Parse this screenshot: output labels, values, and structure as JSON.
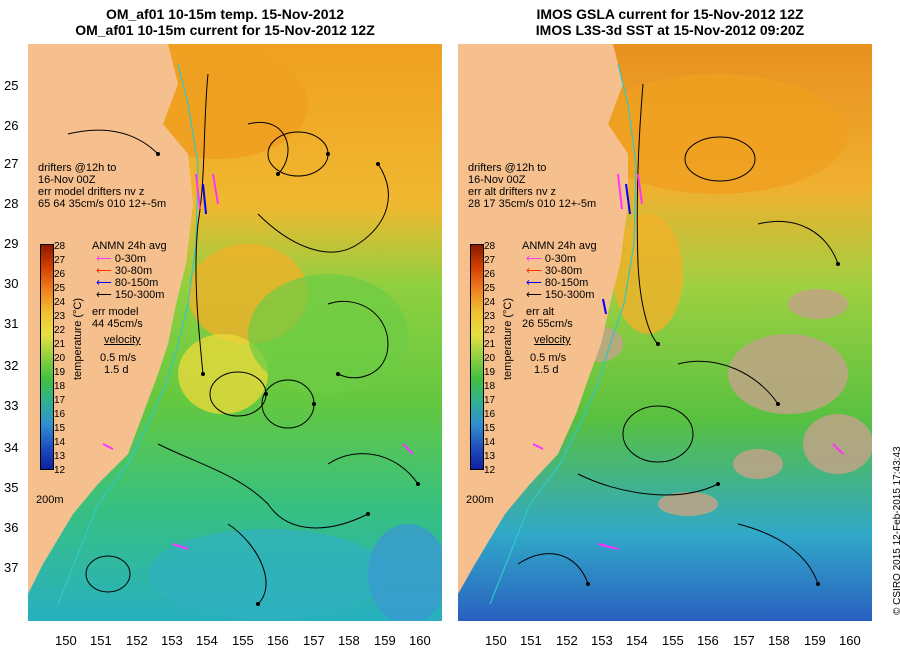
{
  "left_panel": {
    "title_line1": "OM_af01 10-15m temp. 15-Nov-2012",
    "title_line2": "OM_af01 10-15m current for 15-Nov-2012 12Z",
    "drifter_line1": "drifters @12h to",
    "drifter_line2": "16-Nov 00Z",
    "drifter_line3": "err model drifters nv z",
    "drifter_line4": "65   64    35cm/s 010 12+-5m",
    "err_line1": "err model",
    "err_line2": "44 45cm/s"
  },
  "right_panel": {
    "title_line1": "IMOS GSLA current for 15-Nov-2012 12Z",
    "title_line2": "IMOS L3S-3d SST at 15-Nov-2012 09:20Z",
    "drifter_line1": "drifters @12h to",
    "drifter_line2": "16-Nov 00Z",
    "drifter_line3": "err alt drifters nv z",
    "drifter_line4": "28 17 35cm/s 010 12+-5m",
    "err_line1": "err alt",
    "err_line2": "26 55cm/s"
  },
  "legend": {
    "anmn_title": "ANMN 24h avg",
    "depths": [
      {
        "label": "0-30m",
        "color": "#ff33ff"
      },
      {
        "label": "30-80m",
        "color": "#ff3300"
      },
      {
        "label": "80-150m",
        "color": "#0000ff"
      },
      {
        "label": "150-300m",
        "color": "#000000"
      }
    ],
    "velocity": "velocity",
    "scale_speed": "0.5 m/s",
    "scale_time": "1.5 d",
    "depth_contour": "200m",
    "colorbar_label": "temperature (°C)"
  },
  "colorbar_ticks": [
    "28",
    "27",
    "26",
    "25",
    "24",
    "23",
    "22",
    "21",
    "20",
    "19",
    "18",
    "17",
    "16",
    "15",
    "14",
    "13",
    "12"
  ],
  "y_ticks": [
    "25",
    "26",
    "27",
    "28",
    "29",
    "30",
    "31",
    "32",
    "33",
    "34",
    "35",
    "36",
    "37"
  ],
  "x_ticks": [
    "150",
    "151",
    "152",
    "153",
    "154",
    "155",
    "156",
    "157",
    "158",
    "159",
    "160"
  ],
  "credit": "© CSIRO 2015   12-Feb-2015 17:43:43",
  "colors": {
    "land": "#f6c08e",
    "coast": "#f2a43a",
    "warm": "#f0a020",
    "mid": "#e8d53a",
    "cool": "#5fc845",
    "cold": "#2db0a8",
    "cloud": "#c0a487"
  },
  "chart_data": {
    "type": "heatmap",
    "lat_range": [
      -38,
      -24.5
    ],
    "lon_range": [
      149.5,
      161
    ],
    "temp_range": [
      12,
      28
    ]
  }
}
